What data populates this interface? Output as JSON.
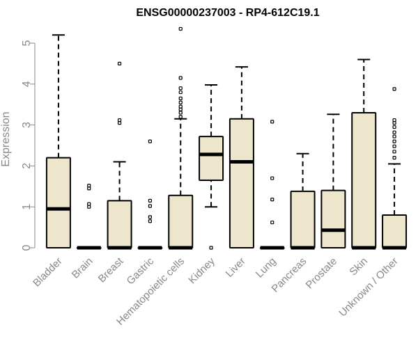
{
  "chart_data": {
    "type": "box",
    "title": "ENSG00000237003 - RP4-612C19.1",
    "xlabel": "",
    "ylabel": "Expression",
    "ylim": [
      0,
      5.4
    ],
    "yticks": [
      "0",
      "1",
      "2",
      "3",
      "4",
      "5"
    ],
    "grid": false,
    "legend": "none",
    "colors": {
      "box_fill": "#ede6cc",
      "stroke": "#000000",
      "axis_text": "#888888"
    },
    "categories": [
      "Bladder",
      "Brain",
      "Breast",
      "Gastric",
      "Hematopoietic cells",
      "Kidney",
      "Liver",
      "Lung",
      "Pancreas",
      "Prostate",
      "Skin",
      "Unknown / Other"
    ],
    "boxes": [
      {
        "q1": 0,
        "median": 0.95,
        "q3": 2.2,
        "whisker_low": 0,
        "whisker_high": 5.2,
        "outliers": []
      },
      {
        "q1": 0,
        "median": 0,
        "q3": 0,
        "whisker_low": 0,
        "whisker_high": 0,
        "outliers": [
          1.0,
          1.07,
          1.45,
          1.52
        ]
      },
      {
        "q1": 0,
        "median": 0,
        "q3": 1.15,
        "whisker_low": 0,
        "whisker_high": 2.1,
        "outliers": [
          3.05,
          3.12,
          4.5
        ]
      },
      {
        "q1": 0,
        "median": 0,
        "q3": 0,
        "whisker_low": 0,
        "whisker_high": 0,
        "outliers": [
          0.65,
          0.75,
          1.02,
          1.15,
          2.6
        ]
      },
      {
        "q1": 0,
        "median": 0,
        "q3": 1.28,
        "whisker_low": 0,
        "whisker_high": 3.15,
        "outliers": [
          3.2,
          3.3,
          3.38,
          3.45,
          3.55,
          3.65,
          3.8,
          3.9,
          4.15,
          5.35
        ]
      },
      {
        "q1": 1.65,
        "median": 2.28,
        "q3": 2.72,
        "whisker_low": 1.0,
        "whisker_high": 3.98,
        "outliers": [
          0
        ]
      },
      {
        "q1": 0,
        "median": 2.1,
        "q3": 3.15,
        "whisker_low": 0,
        "whisker_high": 4.42,
        "outliers": []
      },
      {
        "q1": 0,
        "median": 0,
        "q3": 0,
        "whisker_low": 0,
        "whisker_high": 0,
        "outliers": [
          0.62,
          1.18,
          1.7,
          3.08
        ]
      },
      {
        "q1": 0,
        "median": 0,
        "q3": 1.38,
        "whisker_low": 0,
        "whisker_high": 2.3,
        "outliers": []
      },
      {
        "q1": 0,
        "median": 0.43,
        "q3": 1.4,
        "whisker_low": 0,
        "whisker_high": 3.26,
        "outliers": []
      },
      {
        "q1": 0,
        "median": 0,
        "q3": 3.3,
        "whisker_low": 0,
        "whisker_high": 4.6,
        "outliers": []
      },
      {
        "q1": 0,
        "median": 0,
        "q3": 0.8,
        "whisker_low": 0,
        "whisker_high": 2.05,
        "outliers": [
          2.2,
          2.35,
          2.48,
          2.6,
          2.72,
          2.82,
          2.95,
          3.05,
          3.12,
          3.88
        ]
      }
    ]
  }
}
